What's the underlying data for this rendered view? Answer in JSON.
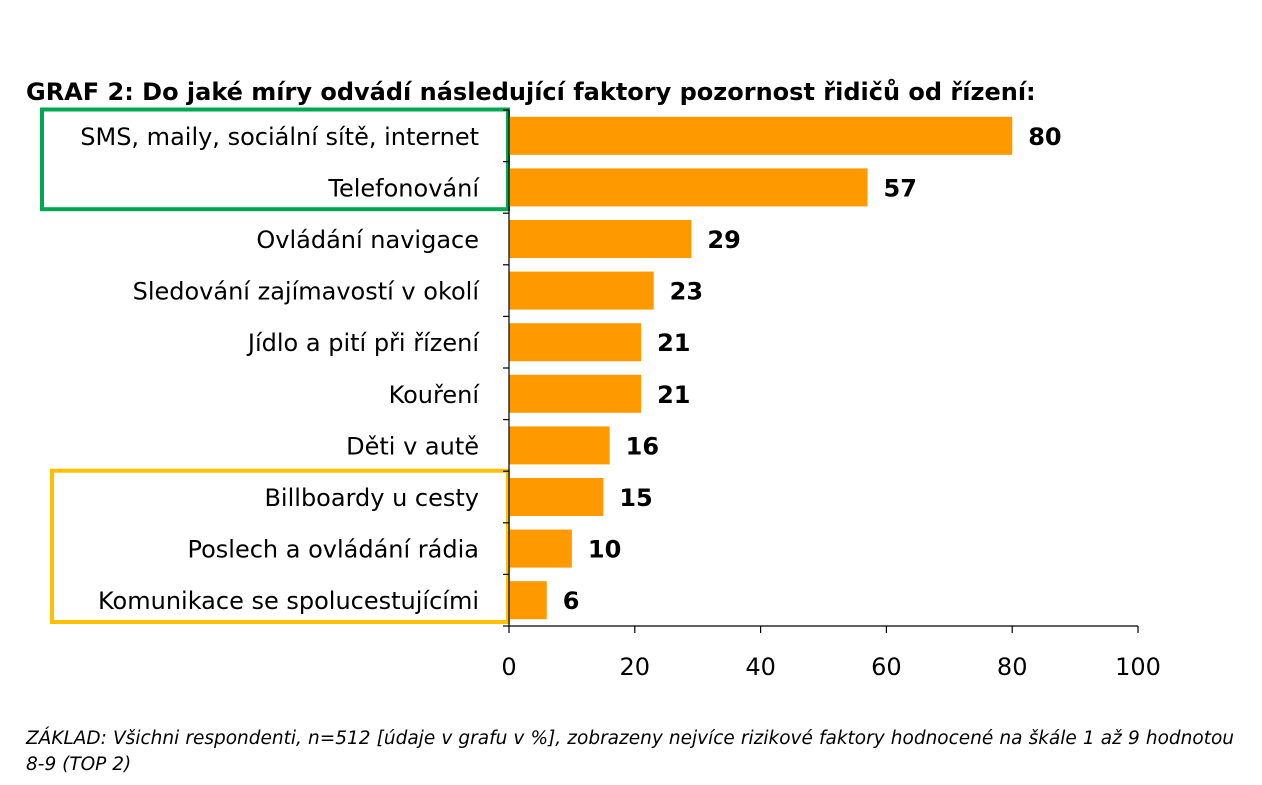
{
  "chart_data": {
    "type": "bar",
    "orientation": "horizontal",
    "title": "GRAF 2: Do jaké míry odvádí následující faktory pozornost řidičů od řízení:",
    "categories": [
      "SMS, maily, sociální sítě, internet",
      "Telefonování",
      "Ovládání navigace",
      "Sledování zajímavostí v okolí",
      "Jídlo a pití při řízení",
      "Kouření",
      "Děti v autě",
      "Billboardy u cesty",
      "Poslech a ovládání rádia",
      "Komunikace se spolucestujícími"
    ],
    "values": [
      80,
      57,
      29,
      23,
      21,
      21,
      16,
      15,
      10,
      6
    ],
    "xlim": [
      0,
      100
    ],
    "xticks": [
      0,
      20,
      40,
      60,
      80,
      100
    ],
    "grid": false,
    "legend": "none",
    "highlights": [
      {
        "categories": [
          0,
          1
        ],
        "color": "#00a651"
      },
      {
        "categories": [
          7,
          8,
          9
        ],
        "color": "#ffc000"
      }
    ]
  },
  "colors": {
    "bar": "#ff9900",
    "axis": "#000000"
  },
  "footnote": "ZÁKLAD: Všichni respondenti, n=512 [údaje v grafu v %], zobrazeny nejvíce rizikové faktory hodnocené na škále 1 až 9 hodnotou 8-9 (TOP 2)"
}
